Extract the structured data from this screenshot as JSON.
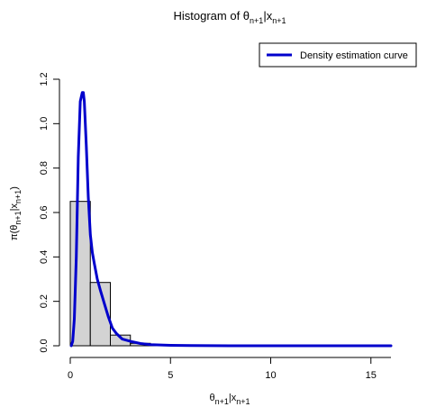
{
  "chart_data": {
    "type": "bar",
    "title": {
      "main": "Histogram of θ",
      "sub": "n+1",
      "mid": "|x",
      "sub2": "n+1"
    },
    "xlabel": {
      "main": "θ",
      "sub": "n+1",
      "mid": "|x",
      "sub2": "n+1"
    },
    "ylabel": {
      "pre": "π(θ",
      "sub": "n+1",
      "mid": "|x",
      "sub2": "n+1",
      "post": ")"
    },
    "xlim": [
      0,
      16
    ],
    "ylim": [
      0,
      1.2
    ],
    "x_ticks": [
      0,
      5,
      10,
      15
    ],
    "y_ticks": [
      0.0,
      0.2,
      0.4,
      0.6,
      0.8,
      1.0,
      1.2
    ],
    "x_tick_labels": [
      "0",
      "5",
      "10",
      "15"
    ],
    "y_tick_labels": [
      "0.0",
      "0.2",
      "0.4",
      "0.6",
      "0.8",
      "1.0",
      "1.2"
    ],
    "bins": [
      {
        "x0": 0,
        "x1": 1,
        "density": 0.65
      },
      {
        "x0": 1,
        "x1": 2,
        "density": 0.285
      },
      {
        "x0": 2,
        "x1": 3,
        "density": 0.048
      },
      {
        "x0": 3,
        "x1": 4,
        "density": 0.011
      },
      {
        "x0": 4,
        "x1": 5,
        "density": 0.004
      },
      {
        "x0": 5,
        "x1": 6,
        "density": 0.001
      }
    ],
    "bar_fill": "#d3d3d3",
    "series": [
      {
        "name": "Density estimation curve",
        "color": "#0000cc",
        "x": [
          0.05,
          0.12,
          0.2,
          0.3,
          0.4,
          0.5,
          0.6,
          0.65,
          0.7,
          0.8,
          0.9,
          1.0,
          1.1,
          1.2,
          1.35,
          1.5,
          1.7,
          1.9,
          2.1,
          2.3,
          2.6,
          3.0,
          3.5,
          4.0,
          5.0,
          6.0,
          8.0,
          10.0,
          12.0,
          14.0,
          16.0
        ],
        "y": [
          0.0,
          0.02,
          0.12,
          0.4,
          0.85,
          1.1,
          1.14,
          1.14,
          1.1,
          0.9,
          0.67,
          0.5,
          0.42,
          0.37,
          0.3,
          0.25,
          0.19,
          0.13,
          0.08,
          0.055,
          0.03,
          0.02,
          0.01,
          0.005,
          0.002,
          0.001,
          0.0,
          0.0,
          0.0,
          0.0,
          0.0
        ]
      }
    ],
    "legend_position": "top-right"
  }
}
